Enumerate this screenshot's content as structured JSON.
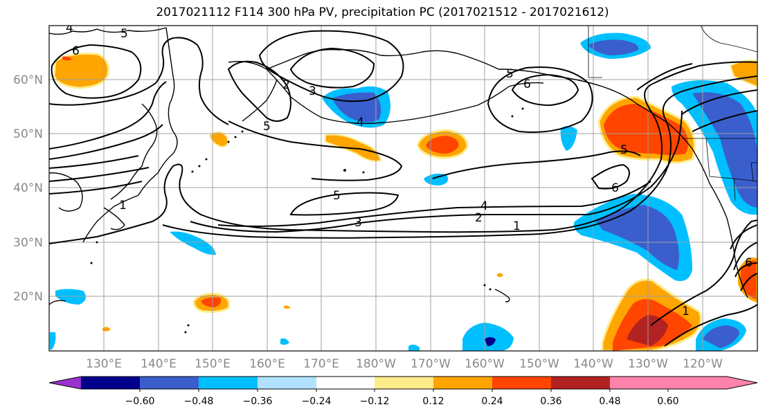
{
  "title": "2017021112 F114 300 hPa PV, precipitation PC (2017021512 - 2017021612)",
  "lat_labels": [
    "60°N",
    "50°N",
    "40°N",
    "30°N",
    "20°N"
  ],
  "lon_labels": [
    "130°E",
    "140°E",
    "150°E",
    "160°E",
    "170°E",
    "180°W",
    "170°W",
    "160°W",
    "150°W",
    "140°W",
    "130°W",
    "120°W"
  ],
  "colorbar": {
    "colors": [
      "#9932cc",
      "#00008b",
      "#3a5fcd",
      "#00bfff",
      "#b0e2ff",
      "#ffffff",
      "#ffec8b",
      "#ffa500",
      "#ff4500",
      "#b22222",
      "#ff82ab"
    ],
    "tick_labels": [
      "−0.60",
      "−0.48",
      "−0.36",
      "−0.24",
      "−0.12",
      "0.12",
      "0.24",
      "0.36",
      "0.48",
      "0.60"
    ]
  },
  "contour_labels": [
    "4",
    "5",
    "6",
    "3",
    "2",
    "5",
    "4",
    "1",
    "5",
    "3",
    "2",
    "4",
    "1",
    "5",
    "6",
    "6",
    "5",
    "1",
    "6"
  ]
}
